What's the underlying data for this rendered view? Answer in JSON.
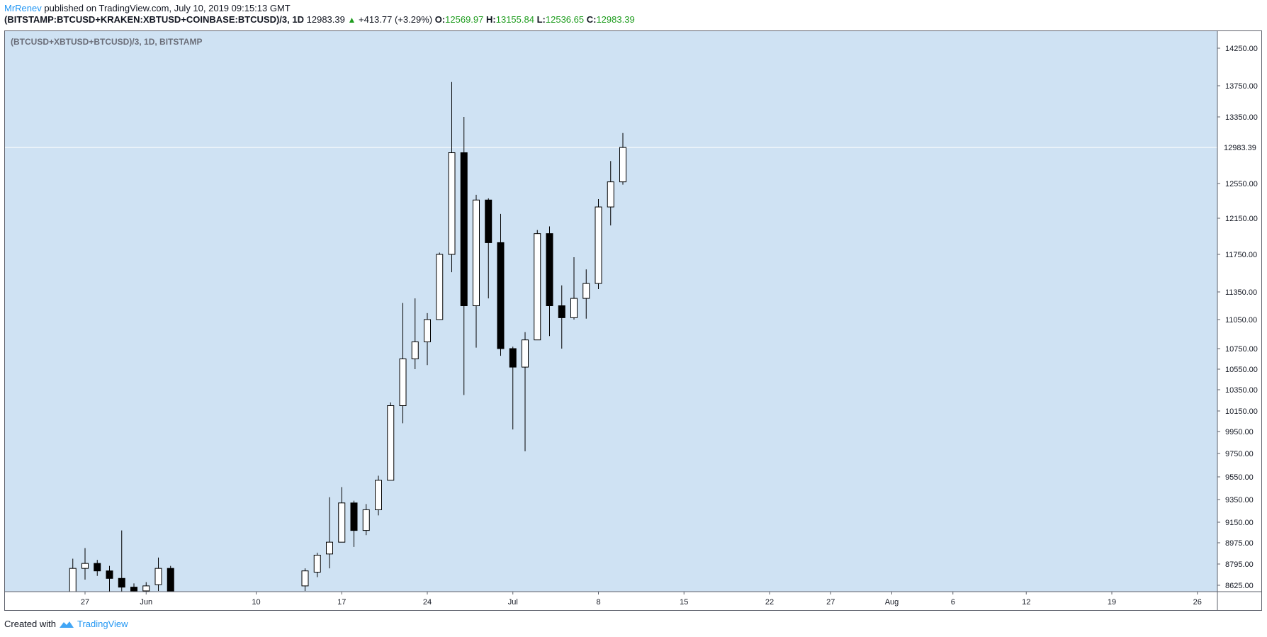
{
  "header": {
    "author": "MrRenev",
    "published_text": "published on TradingView.com, July 10, 2019 09:15:13 GMT",
    "symbol": "(BITSTAMP:BTCUSD+KRAKEN:XBTUSD+COINBASE:BTCUSD)/3, 1D",
    "last_price": "12983.39",
    "change": "+413.77 (+3.29%)",
    "o_label": "O:",
    "o_value": "12569.97",
    "h_label": "H:",
    "h_value": "13155.84",
    "l_label": "L:",
    "l_value": "12536.65",
    "c_label": "C:",
    "c_value": "12983.39"
  },
  "pane_title": "(BTCUSD+XBTUSD+BTCUSD)/3, 1D, BITSTAMP",
  "footer": {
    "created_with": "Created with",
    "brand": "TradingView"
  },
  "colors": {
    "background": "#cfe2f3",
    "up_fill": "#ffffff",
    "down_fill": "#000000",
    "wick": "#000000",
    "price_line": "#ffffff",
    "brand": "#2196f3",
    "positive": "#1f9d1f"
  },
  "chart_data": {
    "type": "candlestick",
    "title": "(BTCUSD+XBTUSD+BTCUSD)/3, 1D, BITSTAMP",
    "y_ticks": [
      "14250.00",
      "13750.00",
      "13350.00",
      "12550.00",
      "12150.00",
      "11750.00",
      "11350.00",
      "11050.00",
      "10750.00",
      "10550.00",
      "10350.00",
      "10150.00",
      "9950.00",
      "9750.00",
      "9550.00",
      "9350.00",
      "9150.00",
      "8975.00",
      "8795.00",
      "8625.00"
    ],
    "current_price_label": "12983.39",
    "x_ticks": [
      {
        "label": "27",
        "date": "2019-05-27"
      },
      {
        "label": "Jun",
        "date": "2019-06-01"
      },
      {
        "label": "10",
        "date": "2019-06-10"
      },
      {
        "label": "17",
        "date": "2019-06-17"
      },
      {
        "label": "24",
        "date": "2019-06-24"
      },
      {
        "label": "Jul",
        "date": "2019-07-01"
      },
      {
        "label": "8",
        "date": "2019-07-08"
      },
      {
        "label": "15",
        "date": "2019-07-15"
      },
      {
        "label": "22",
        "date": "2019-07-22"
      },
      {
        "label": "27",
        "date": "2019-07-27"
      },
      {
        "label": "Aug",
        "date": "2019-08-01"
      },
      {
        "label": "6",
        "date": "2019-08-06"
      },
      {
        "label": "12",
        "date": "2019-08-12"
      },
      {
        "label": "19",
        "date": "2019-08-19"
      },
      {
        "label": "26",
        "date": "2019-08-26"
      }
    ],
    "candles": [
      {
        "date": "2019-05-26",
        "open": 8530,
        "high": 8840,
        "low": 8520,
        "close": 8760
      },
      {
        "date": "2019-05-27",
        "open": 8760,
        "high": 8930,
        "low": 8670,
        "close": 8800
      },
      {
        "date": "2019-05-28",
        "open": 8800,
        "high": 8830,
        "low": 8700,
        "close": 8740
      },
      {
        "date": "2019-05-29",
        "open": 8740,
        "high": 8780,
        "low": 8530,
        "close": 8680
      },
      {
        "date": "2019-05-30",
        "open": 8680,
        "high": 9080,
        "low": 8560,
        "close": 8610
      },
      {
        "date": "2019-05-31",
        "open": 8610,
        "high": 8640,
        "low": 8300,
        "close": 8580
      },
      {
        "date": "2019-06-01",
        "open": 8580,
        "high": 8650,
        "low": 8500,
        "close": 8620
      },
      {
        "date": "2019-06-02",
        "open": 8630,
        "high": 8850,
        "low": 8580,
        "close": 8760
      },
      {
        "date": "2019-06-03",
        "open": 8760,
        "high": 8780,
        "low": 8100,
        "close": 8150
      },
      {
        "date": "2019-06-14",
        "open": 8620,
        "high": 8760,
        "low": 8580,
        "close": 8740
      },
      {
        "date": "2019-06-15",
        "open": 8730,
        "high": 8890,
        "low": 8690,
        "close": 8870
      },
      {
        "date": "2019-06-16",
        "open": 8880,
        "high": 9370,
        "low": 8760,
        "close": 8980
      },
      {
        "date": "2019-06-17",
        "open": 8980,
        "high": 9460,
        "low": 8980,
        "close": 9320
      },
      {
        "date": "2019-06-18",
        "open": 9320,
        "high": 9340,
        "low": 8940,
        "close": 9080
      },
      {
        "date": "2019-06-19",
        "open": 9080,
        "high": 9310,
        "low": 9040,
        "close": 9260
      },
      {
        "date": "2019-06-20",
        "open": 9260,
        "high": 9560,
        "low": 9210,
        "close": 9520
      },
      {
        "date": "2019-06-21",
        "open": 9520,
        "high": 10230,
        "low": 9520,
        "close": 10200
      },
      {
        "date": "2019-06-22",
        "open": 10200,
        "high": 11230,
        "low": 10030,
        "close": 10650
      },
      {
        "date": "2019-06-23",
        "open": 10650,
        "high": 11280,
        "low": 10550,
        "close": 10820
      },
      {
        "date": "2019-06-24",
        "open": 10820,
        "high": 11120,
        "low": 10590,
        "close": 11050
      },
      {
        "date": "2019-06-25",
        "open": 11050,
        "high": 11770,
        "low": 11050,
        "close": 11750
      },
      {
        "date": "2019-06-26",
        "open": 11750,
        "high": 13800,
        "low": 11560,
        "close": 12920
      },
      {
        "date": "2019-06-27",
        "open": 12920,
        "high": 13350,
        "low": 10300,
        "close": 11200
      },
      {
        "date": "2019-06-28",
        "open": 11200,
        "high": 12420,
        "low": 10760,
        "close": 12360
      },
      {
        "date": "2019-06-29",
        "open": 12360,
        "high": 12380,
        "low": 11280,
        "close": 11880
      },
      {
        "date": "2019-06-30",
        "open": 11880,
        "high": 12200,
        "low": 10680,
        "close": 10750
      },
      {
        "date": "2019-07-01",
        "open": 10750,
        "high": 10770,
        "low": 9970,
        "close": 10570
      },
      {
        "date": "2019-07-02",
        "open": 10570,
        "high": 10920,
        "low": 9770,
        "close": 10840
      },
      {
        "date": "2019-07-03",
        "open": 10840,
        "high": 12020,
        "low": 10840,
        "close": 11980
      },
      {
        "date": "2019-07-04",
        "open": 11980,
        "high": 12060,
        "low": 10880,
        "close": 11200
      },
      {
        "date": "2019-07-05",
        "open": 11200,
        "high": 11420,
        "low": 10750,
        "close": 11070
      },
      {
        "date": "2019-07-06",
        "open": 11070,
        "high": 11720,
        "low": 11050,
        "close": 11280
      },
      {
        "date": "2019-07-07",
        "open": 11280,
        "high": 11590,
        "low": 11060,
        "close": 11440
      },
      {
        "date": "2019-07-08",
        "open": 11440,
        "high": 12370,
        "low": 11380,
        "close": 12280
      },
      {
        "date": "2019-07-09",
        "open": 12280,
        "high": 12820,
        "low": 12070,
        "close": 12570
      },
      {
        "date": "2019-07-10",
        "open": 12570,
        "high": 13156,
        "low": 12537,
        "close": 12983
      }
    ]
  }
}
